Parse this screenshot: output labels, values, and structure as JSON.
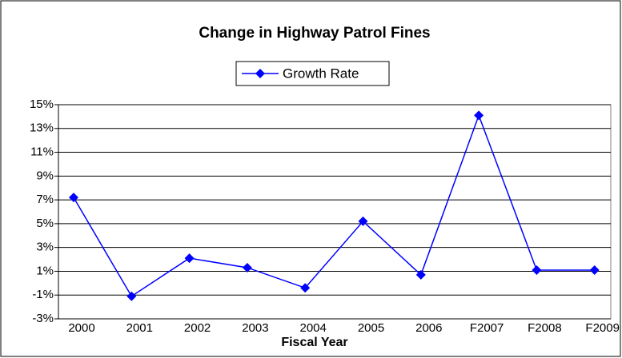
{
  "chart_data": {
    "type": "line",
    "title": "Change in Highway Patrol Fines",
    "x_label": "Fiscal Year",
    "categories": [
      "2000",
      "2001",
      "2002",
      "2003",
      "2004",
      "2005",
      "2006",
      "F2007",
      "F2008",
      "F2009"
    ],
    "series": [
      {
        "name": "Growth Rate",
        "color": "#0000ff",
        "values": [
          7.2,
          -1.1,
          2.1,
          1.3,
          -0.4,
          5.2,
          0.7,
          14.1,
          1.1,
          1.1
        ]
      }
    ],
    "ylim": [
      -3,
      15
    ],
    "yticks": [
      {
        "value": -3,
        "label": "-3%"
      },
      {
        "value": -1,
        "label": "-1%"
      },
      {
        "value": 1,
        "label": "1%"
      },
      {
        "value": 3,
        "label": "3%"
      },
      {
        "value": 5,
        "label": "5%"
      },
      {
        "value": 7,
        "label": "7%"
      },
      {
        "value": 9,
        "label": "9%"
      },
      {
        "value": 11,
        "label": "11%"
      },
      {
        "value": 13,
        "label": "13%"
      },
      {
        "value": 15,
        "label": "15%"
      }
    ],
    "grid": true,
    "legend": "top"
  }
}
